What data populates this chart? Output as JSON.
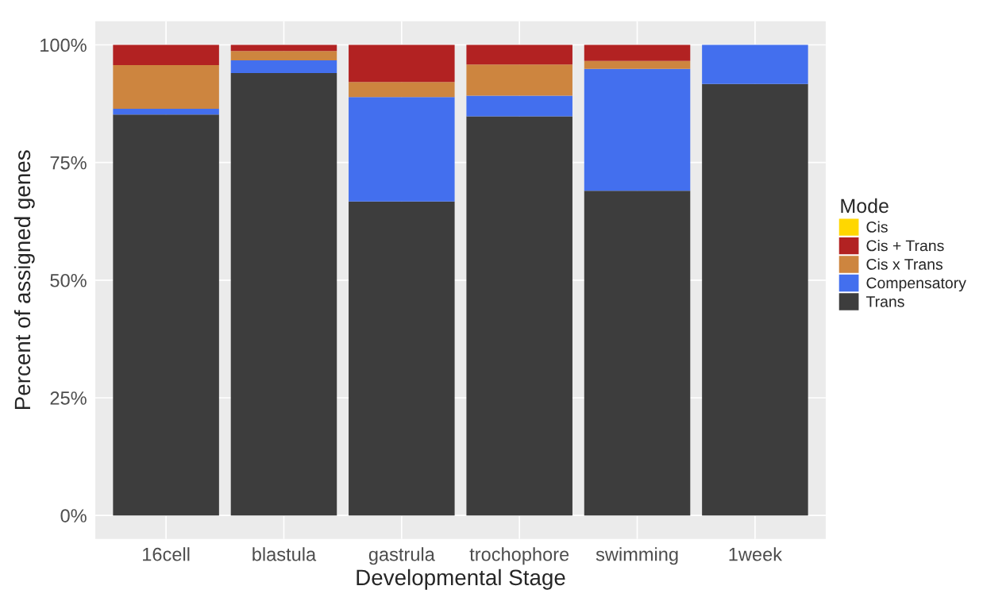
{
  "chart_data": {
    "type": "bar",
    "stacked": true,
    "xlabel": "Developmental Stage",
    "ylabel": "Percent of assigned genes",
    "legend_title": "Mode",
    "legend": "right",
    "grid": true,
    "categories": [
      "16cell",
      "blastula",
      "gastrula",
      "trochophore",
      "swimming",
      "1week"
    ],
    "ylim": [
      -5,
      105
    ],
    "yticks": [
      {
        "value": 0,
        "label": "0%"
      },
      {
        "value": 25,
        "label": "25%"
      },
      {
        "value": 50,
        "label": "50%"
      },
      {
        "value": 75,
        "label": "75%"
      },
      {
        "value": 100,
        "label": "100%"
      }
    ],
    "series": [
      {
        "name": "Trans",
        "color": "#3d3d3d",
        "values": [
          85.2,
          94.0,
          66.7,
          84.8,
          69.0,
          91.7
        ]
      },
      {
        "name": "Compensatory",
        "color": "#436fee",
        "values": [
          1.2,
          2.7,
          22.2,
          4.4,
          25.9,
          8.3
        ]
      },
      {
        "name": "Cis x Trans",
        "color": "#cd853f",
        "values": [
          9.3,
          2.0,
          3.2,
          6.6,
          1.7,
          0
        ]
      },
      {
        "name": "Cis + Trans",
        "color": "#b22222",
        "values": [
          4.3,
          1.3,
          7.9,
          4.2,
          3.4,
          0
        ]
      },
      {
        "name": "Cis",
        "color": "#ffd700",
        "values": [
          0,
          0,
          0,
          0,
          0,
          0
        ]
      }
    ]
  }
}
